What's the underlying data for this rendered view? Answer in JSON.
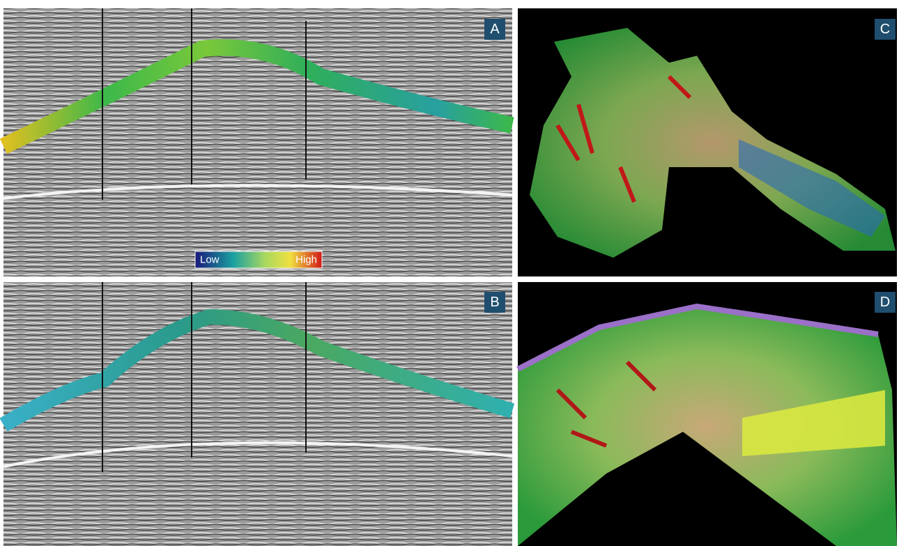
{
  "panels": [
    {
      "label": "A"
    },
    {
      "label": "B"
    },
    {
      "label": "C"
    },
    {
      "label": "D"
    }
  ],
  "colorbar": {
    "low": "Low",
    "high": "High"
  }
}
